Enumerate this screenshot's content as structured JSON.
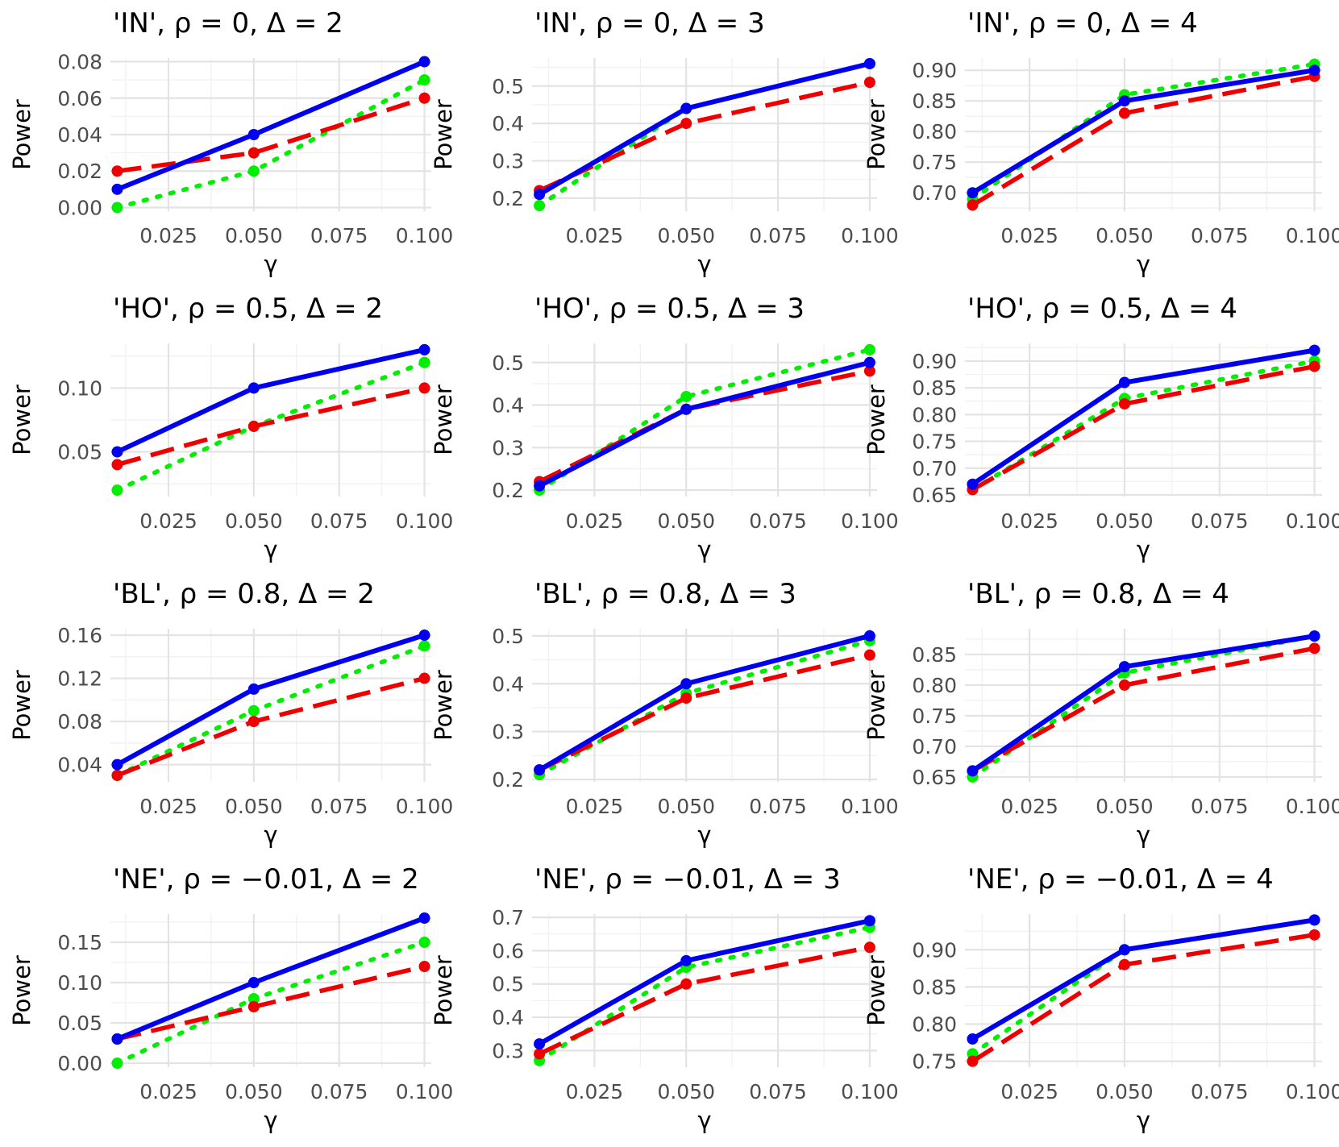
{
  "chart_data": {
    "type": "line",
    "layout": "facet grid, 4 rows x 3 columns",
    "x": [
      0.01,
      0.05,
      0.1
    ],
    "xlabel": "γ",
    "ylabel": "Power",
    "xlim": [
      0.008,
      0.102
    ],
    "x_ticks": [
      0.025,
      0.05,
      0.075,
      0.1
    ],
    "x_tick_labels": [
      "0.025",
      "0.050",
      "0.075",
      "0.100"
    ],
    "grid": true,
    "legend": "none",
    "series_style": [
      {
        "color": "#0000ee",
        "line": "solid"
      },
      {
        "color": "#ee0000",
        "line": "dashed"
      },
      {
        "color": "#00ee00",
        "line": "dotted"
      }
    ],
    "panels": [
      {
        "title": "'IN', ρ = 0, Δ = 2",
        "ylim": [
          -0.002,
          0.082
        ],
        "y_ticks": [
          0,
          0.02,
          0.04,
          0.06,
          0.08
        ],
        "y_tick_labels": [
          "0.00",
          "0.02",
          "0.04",
          "0.06",
          "0.08"
        ],
        "series": [
          {
            "values": [
              0.01,
              0.04,
              0.08
            ]
          },
          {
            "values": [
              0.02,
              0.03,
              0.06
            ]
          },
          {
            "values": [
              0.0,
              0.02,
              0.07
            ]
          }
        ]
      },
      {
        "title": "'IN', ρ = 0, Δ = 3",
        "ylim": [
          0.165,
          0.575
        ],
        "y_ticks": [
          0.2,
          0.3,
          0.4,
          0.5
        ],
        "y_tick_labels": [
          "0.2",
          "0.3",
          "0.4",
          "0.5"
        ],
        "series": [
          {
            "values": [
              0.21,
              0.44,
              0.56
            ]
          },
          {
            "values": [
              0.22,
              0.4,
              0.51
            ]
          },
          {
            "values": [
              0.18,
              0.44,
              0.56
            ]
          }
        ]
      },
      {
        "title": "'IN', ρ = 0, Δ = 4",
        "ylim": [
          0.67,
          0.92
        ],
        "y_ticks": [
          0.7,
          0.75,
          0.8,
          0.85,
          0.9
        ],
        "y_tick_labels": [
          "0.70",
          "0.75",
          "0.80",
          "0.85",
          "0.90"
        ],
        "series": [
          {
            "values": [
              0.7,
              0.85,
              0.9
            ]
          },
          {
            "values": [
              0.68,
              0.83,
              0.89
            ]
          },
          {
            "values": [
              0.69,
              0.86,
              0.91
            ]
          }
        ]
      },
      {
        "title": "'HO', ρ = 0.5, Δ = 2",
        "ylim": [
          0.015,
          0.135
        ],
        "y_ticks": [
          0.05,
          0.1
        ],
        "y_tick_labels": [
          "0.05",
          "0.10"
        ],
        "series": [
          {
            "values": [
              0.05,
              0.1,
              0.13
            ]
          },
          {
            "values": [
              0.04,
              0.07,
              0.1
            ]
          },
          {
            "values": [
              0.02,
              0.07,
              0.12
            ]
          }
        ]
      },
      {
        "title": "'HO', ρ = 0.5, Δ = 3",
        "ylim": [
          0.185,
          0.545
        ],
        "y_ticks": [
          0.2,
          0.3,
          0.4,
          0.5
        ],
        "y_tick_labels": [
          "0.2",
          "0.3",
          "0.4",
          "0.5"
        ],
        "series": [
          {
            "values": [
              0.21,
              0.39,
              0.5
            ]
          },
          {
            "values": [
              0.22,
              0.39,
              0.48
            ]
          },
          {
            "values": [
              0.2,
              0.42,
              0.53
            ]
          }
        ]
      },
      {
        "title": "'HO', ρ = 0.5, Δ = 4",
        "ylim": [
          0.647,
          0.933
        ],
        "y_ticks": [
          0.65,
          0.7,
          0.75,
          0.8,
          0.85,
          0.9
        ],
        "y_tick_labels": [
          "0.65",
          "0.70",
          "0.75",
          "0.80",
          "0.85",
          "0.90"
        ],
        "series": [
          {
            "values": [
              0.67,
              0.86,
              0.92
            ]
          },
          {
            "values": [
              0.66,
              0.82,
              0.89
            ]
          },
          {
            "values": [
              0.66,
              0.83,
              0.9
            ]
          }
        ]
      },
      {
        "title": "'BL', ρ = 0.8, Δ = 2",
        "ylim": [
          0.024,
          0.166
        ],
        "y_ticks": [
          0.04,
          0.08,
          0.12,
          0.16
        ],
        "y_tick_labels": [
          "0.04",
          "0.08",
          "0.12",
          "0.16"
        ],
        "series": [
          {
            "values": [
              0.04,
              0.11,
              0.16
            ]
          },
          {
            "values": [
              0.03,
              0.08,
              0.12
            ]
          },
          {
            "values": [
              0.03,
              0.09,
              0.15
            ]
          }
        ]
      },
      {
        "title": "'BL', ρ = 0.8, Δ = 3",
        "ylim": [
          0.195,
          0.515
        ],
        "y_ticks": [
          0.2,
          0.3,
          0.4,
          0.5
        ],
        "y_tick_labels": [
          "0.2",
          "0.3",
          "0.4",
          "0.5"
        ],
        "series": [
          {
            "values": [
              0.22,
              0.4,
              0.5
            ]
          },
          {
            "values": [
              0.22,
              0.37,
              0.46
            ]
          },
          {
            "values": [
              0.21,
              0.38,
              0.49
            ]
          }
        ]
      },
      {
        "title": "'BL', ρ = 0.8, Δ = 4",
        "ylim": [
          0.642,
          0.892
        ],
        "y_ticks": [
          0.65,
          0.7,
          0.75,
          0.8,
          0.85
        ],
        "y_tick_labels": [
          "0.65",
          "0.70",
          "0.75",
          "0.80",
          "0.85"
        ],
        "series": [
          {
            "values": [
              0.66,
              0.83,
              0.88
            ]
          },
          {
            "values": [
              0.66,
              0.8,
              0.86
            ]
          },
          {
            "values": [
              0.65,
              0.82,
              0.88
            ]
          }
        ]
      },
      {
        "title": "'NE', ρ = −0.01, Δ = 2",
        "ylim": [
          -0.005,
          0.185
        ],
        "y_ticks": [
          0,
          0.05,
          0.1,
          0.15
        ],
        "y_tick_labels": [
          "0.00",
          "0.05",
          "0.10",
          "0.15"
        ],
        "series": [
          {
            "values": [
              0.03,
              0.1,
              0.18
            ]
          },
          {
            "values": [
              0.03,
              0.07,
              0.12
            ]
          },
          {
            "values": [
              0.0,
              0.08,
              0.15
            ]
          }
        ]
      },
      {
        "title": "'NE', ρ = −0.01, Δ = 3",
        "ylim": [
          0.25,
          0.71
        ],
        "y_ticks": [
          0.3,
          0.4,
          0.5,
          0.6,
          0.7
        ],
        "y_tick_labels": [
          "0.3",
          "0.4",
          "0.5",
          "0.6",
          "0.7"
        ],
        "series": [
          {
            "values": [
              0.32,
              0.57,
              0.69
            ]
          },
          {
            "values": [
              0.29,
              0.5,
              0.61
            ]
          },
          {
            "values": [
              0.27,
              0.55,
              0.67
            ]
          }
        ]
      },
      {
        "title": "'NE', ρ = −0.01, Δ = 4",
        "ylim": [
          0.742,
          0.948
        ],
        "y_ticks": [
          0.75,
          0.8,
          0.85,
          0.9
        ],
        "y_tick_labels": [
          "0.75",
          "0.80",
          "0.85",
          "0.90"
        ],
        "series": [
          {
            "values": [
              0.78,
              0.9,
              0.94
            ]
          },
          {
            "values": [
              0.75,
              0.88,
              0.92
            ]
          },
          {
            "values": [
              0.76,
              0.9,
              0.94
            ]
          }
        ]
      }
    ]
  }
}
